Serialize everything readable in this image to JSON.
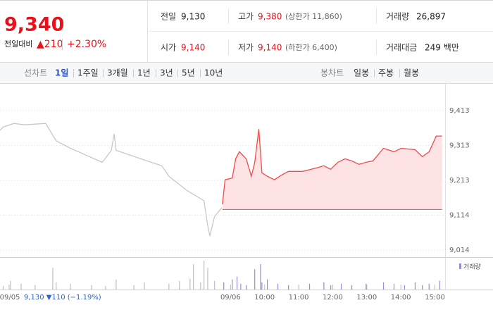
{
  "header": {
    "price": "9,340",
    "change_label": "전일대비",
    "change": "▲210",
    "change_rate": "+2.30%",
    "stats": [
      {
        "label": "전일",
        "value": "9,130"
      },
      {
        "label": "고가",
        "value": "9,380",
        "note": "(상한가 11,860)"
      },
      {
        "label": "거래량",
        "value": "26,897"
      },
      {
        "label": "시가",
        "value": "9,140"
      },
      {
        "label": "저가",
        "value": "9,140",
        "note": "(하한가 6,400)"
      },
      {
        "label": "거래대금",
        "value": "249 백만"
      }
    ]
  },
  "tabs": {
    "line_label": "선차트",
    "line_periods": [
      "1일",
      "1주일",
      "3개월",
      "1년",
      "3년",
      "5년",
      "10년"
    ],
    "candle_label": "봉차트",
    "candle_periods": [
      "일봉",
      "주봉",
      "월봉"
    ]
  },
  "chart_data": {
    "type": "line",
    "xlim": [
      -0.27,
      12.8
    ],
    "xticks": [
      {
        "value": 0,
        "label": "09/05"
      },
      {
        "value": 6.5,
        "label": "09/06"
      },
      {
        "value": 7.5,
        "label": "10:00"
      },
      {
        "value": 8.5,
        "label": "11:00"
      },
      {
        "value": 9.5,
        "label": "12:00"
      },
      {
        "value": 10.5,
        "label": "13:00"
      },
      {
        "value": 11.5,
        "label": "14:00"
      },
      {
        "value": 12.5,
        "label": "15:00"
      }
    ],
    "ylim": [
      8994,
      9471
    ],
    "yticks": [
      {
        "value": 9014,
        "label": "9,014"
      },
      {
        "value": 9114,
        "label": "9,114"
      },
      {
        "value": 9213,
        "label": "9,213"
      },
      {
        "value": 9313,
        "label": "9,313"
      },
      {
        "value": 9413,
        "label": "9,413"
      }
    ],
    "grid": true,
    "area_base": 9130,
    "series": [
      {
        "color": "#c8c8c8",
        "x": [
          -0.27,
          -0.17,
          0.14,
          0.45,
          1.07,
          1.38,
          1.8,
          2.73,
          3.0,
          3.08,
          3.14,
          4.17,
          4.48,
          4.69,
          5.21,
          5.72,
          5.83,
          5.89,
          6.03,
          6.24
        ],
        "values": [
          9356,
          9366,
          9376,
          9372,
          9376,
          9326,
          9305,
          9265,
          9299,
          9346,
          9299,
          9265,
          9255,
          9225,
          9185,
          9155,
          9084,
          9054,
          9110,
          9135
        ]
      },
      {
        "color": "#f04b4b",
        "fill": "#fde3e3",
        "x": [
          6.26,
          6.34,
          6.55,
          6.65,
          6.76,
          6.96,
          7.11,
          7.21,
          7.33,
          7.42,
          7.58,
          7.79,
          7.99,
          8.2,
          8.62,
          9.03,
          9.24,
          9.44,
          9.65,
          9.86,
          10.06,
          10.27,
          10.48,
          10.68,
          10.99,
          11.3,
          11.51,
          11.92,
          12.13,
          12.33,
          12.54,
          12.71
        ],
        "values": [
          9145,
          9215,
          9220,
          9275,
          9295,
          9275,
          9225,
          9265,
          9360,
          9235,
          9225,
          9215,
          9228,
          9239,
          9239,
          9249,
          9255,
          9245,
          9265,
          9275,
          9269,
          9259,
          9265,
          9269,
          9305,
          9295,
          9305,
          9301,
          9281,
          9295,
          9340,
          9340
        ]
      }
    ],
    "volume": {
      "name": "거래량",
      "ylim": [
        0,
        1500
      ],
      "series": [
        {
          "color": "#c0c0c0",
          "x": [
            -0.17,
            0.04,
            0.35,
            0.76,
            1.28,
            1.38,
            1.8,
            2.42,
            2.83,
            3.14,
            3.66,
            3.97,
            4.69,
            5.0,
            5.31,
            5.41,
            5.62,
            5.72,
            5.83,
            6.03
          ],
          "values": [
            175,
            420,
            280,
            210,
            1050,
            350,
            280,
            210,
            175,
            490,
            210,
            350,
            280,
            420,
            525,
            1225,
            350,
            1400,
            1050,
            420
          ]
        },
        {
          "color": "#9b8bd6",
          "x": [
            6.3,
            6.55,
            6.69,
            6.8,
            6.96,
            7.21,
            7.38,
            7.42,
            7.58,
            7.89,
            8.2,
            8.82,
            9.24,
            9.44,
            9.75,
            10.06,
            10.48,
            10.99,
            11.3,
            11.61,
            11.92,
            12.13,
            12.33,
            12.64
          ],
          "values": [
            350,
            490,
            630,
            280,
            210,
            980,
            1225,
            350,
            490,
            280,
            210,
            280,
            350,
            210,
            280,
            210,
            280,
            350,
            280,
            210,
            350,
            210,
            280,
            420
          ]
        }
      ]
    },
    "footer_quote": "9,130 ▼110 (−1.19%)"
  }
}
